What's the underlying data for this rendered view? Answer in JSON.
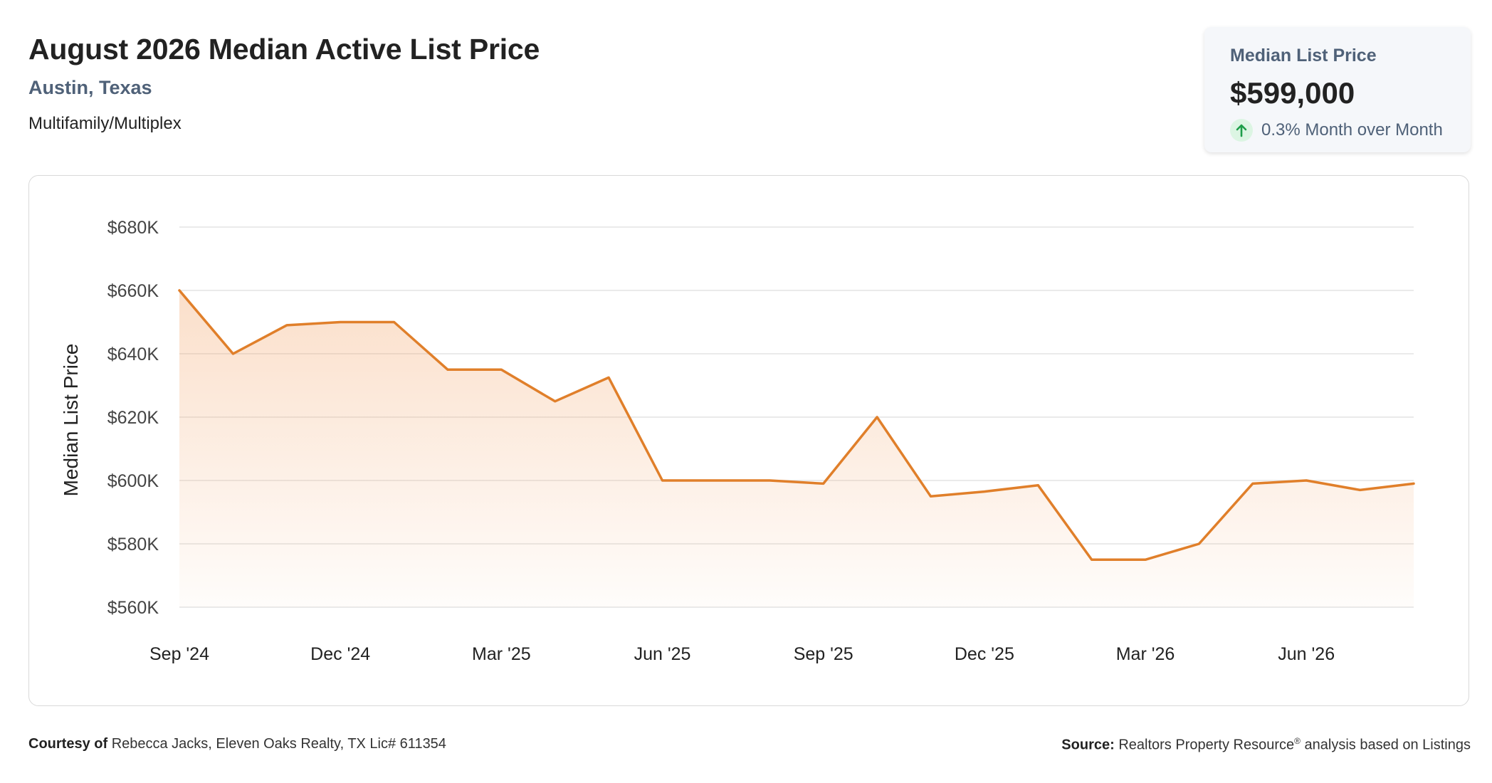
{
  "header": {
    "title": "August 2026 Median Active List Price",
    "location": "Austin, Texas",
    "property_type": "Multifamily/Multiplex"
  },
  "stat_card": {
    "label": "Median List Price",
    "value": "$599,000",
    "change": "0.3% Month over Month",
    "direction_icon": "arrow-up-icon",
    "change_color": "#1e9e4a"
  },
  "footer": {
    "courtesy_label": "Courtesy of",
    "courtesy_text": "Rebecca Jacks, Eleven Oaks Realty, TX Lic# 611354",
    "source_label": "Source:",
    "source_name": "Realtors Property Resource",
    "source_mark": "®",
    "source_rest": "analysis based on Listings"
  },
  "chart_data": {
    "type": "area",
    "ylabel": "Median List Price",
    "ylim": [
      560000,
      680000
    ],
    "yticks": [
      560000,
      580000,
      600000,
      620000,
      640000,
      660000,
      680000
    ],
    "ytick_labels": [
      "$560K",
      "$580K",
      "$600K",
      "$620K",
      "$640K",
      "$660K",
      "$680K"
    ],
    "x": [
      "2024-09",
      "2024-10",
      "2024-11",
      "2024-12",
      "2025-01",
      "2025-02",
      "2025-03",
      "2025-04",
      "2025-05",
      "2025-06",
      "2025-07",
      "2025-08",
      "2025-09",
      "2025-10",
      "2025-11",
      "2025-12",
      "2026-01",
      "2026-02",
      "2026-03",
      "2026-04",
      "2026-05",
      "2026-06",
      "2026-07",
      "2026-08"
    ],
    "values": [
      660000,
      640000,
      649000,
      650000,
      650000,
      635000,
      635000,
      625000,
      632500,
      600000,
      600000,
      600000,
      599000,
      620000,
      595000,
      596500,
      598500,
      575000,
      575000,
      580000,
      599000,
      600000,
      597000,
      599000
    ],
    "xtick_labels": [
      "Sep '24",
      "Dec '24",
      "Mar '25",
      "Jun '25",
      "Sep '25",
      "Dec '25",
      "Mar '26",
      "Jun '26"
    ],
    "xtick_every": 3,
    "line_color": "#e07f2a",
    "fill_color": "#f3a468",
    "grid": true,
    "legend": "none"
  }
}
